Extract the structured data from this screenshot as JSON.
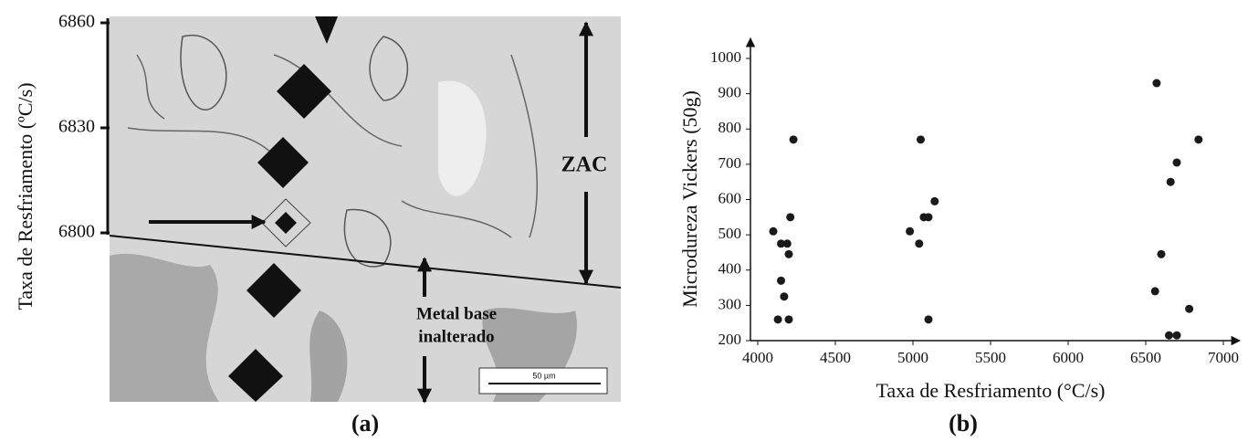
{
  "chart_data": [
    {
      "type": "image",
      "ylabel": "Taxa de Resfriamento (ºC/s)",
      "ylim": [
        6800,
        6860
      ],
      "yticks": [
        6800,
        6830,
        6860
      ],
      "annotations": [
        "ZAC",
        "Metal base",
        "inalterado",
        "50 µm"
      ],
      "caption": "(a)"
    },
    {
      "type": "scatter",
      "xlabel": "Taxa de Resfriamento (°C/s)",
      "ylabel": "Microdureza Vickers (50g)",
      "xlim": [
        4000,
        7000
      ],
      "ylim": [
        200,
        1000
      ],
      "xticks": [
        4000,
        4500,
        5000,
        5500,
        6000,
        6500,
        7000
      ],
      "yticks": [
        200,
        300,
        400,
        500,
        600,
        700,
        800,
        900,
        1000
      ],
      "x": [
        4100,
        4150,
        4190,
        4200,
        4210,
        4230,
        4150,
        4170,
        4130,
        4200,
        5050,
        4980,
        5040,
        5070,
        5100,
        5140,
        5100,
        6570,
        6840,
        6700,
        6660,
        6600,
        6560,
        6780,
        6650,
        6700
      ],
      "values": [
        510,
        475,
        475,
        445,
        550,
        770,
        370,
        325,
        260,
        260,
        770,
        510,
        475,
        550,
        550,
        595,
        260,
        930,
        770,
        705,
        650,
        445,
        340,
        290,
        215,
        215
      ],
      "color": "#1a1a1a",
      "caption": "(b)"
    }
  ]
}
